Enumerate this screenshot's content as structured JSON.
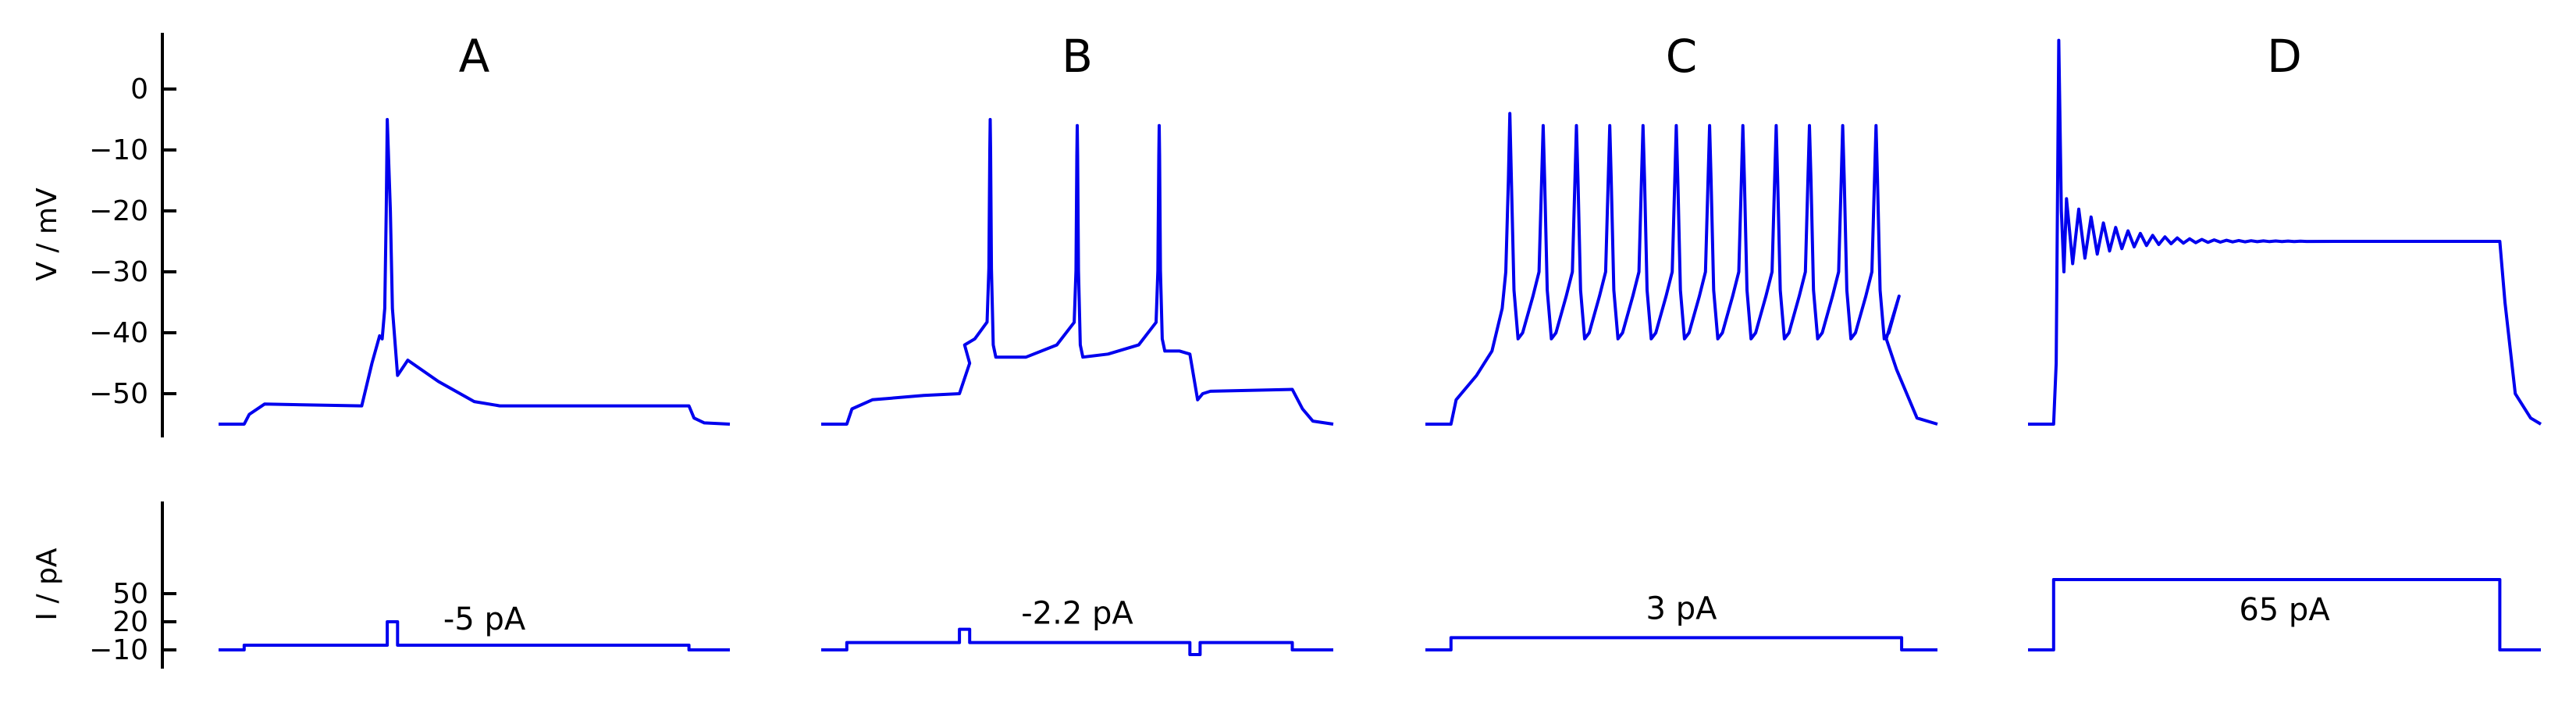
{
  "chart_data": {
    "type": "line",
    "trace_color": "#0000ee",
    "voltage_axis": {
      "label": "V / mV",
      "ticks": [
        0,
        -10,
        -20,
        -30,
        -40,
        -50
      ],
      "tick_labels": [
        "0",
        "−10",
        "−20",
        "−30",
        "−40",
        "−50"
      ],
      "ylim": [
        -56,
        9
      ]
    },
    "current_axis": {
      "label": "I / pA",
      "ticks": [
        50,
        20,
        -10
      ],
      "tick_labels": [
        "50",
        "20",
        "−10"
      ],
      "ylim": [
        -20,
        75
      ]
    },
    "panels": [
      {
        "title": "A",
        "current_label": "-5 pA",
        "voltage": {
          "baseline": -55,
          "plateau_start": 0.05,
          "plateau_end": 0.92,
          "plateau": -52,
          "events": [
            {
              "kind": "spike",
              "t": 0.33,
              "pre": -40.5,
              "peak": -5,
              "after": -45,
              "decay_to": -52,
              "decay_end": 0.55
            }
          ]
        },
        "current": {
          "baseline": -10,
          "steps": [
            [
              0.05,
              -5
            ],
            [
              0.33,
              20
            ],
            [
              0.35,
              -5
            ],
            [
              0.92,
              -10
            ]
          ]
        }
      },
      {
        "title": "B",
        "current_label": "-2.2 pA",
        "voltage": {
          "baseline": -55,
          "plateau_start": 0.05,
          "plateau_end": 0.92,
          "events": [
            {
              "kind": "depolarize",
              "t0": 0.05,
              "t1": 0.28,
              "from": -55,
              "to": -50
            },
            {
              "kind": "spike",
              "t": 0.33,
              "pre": -42,
              "peak": -5,
              "trough": -44
            },
            {
              "kind": "spike",
              "t": 0.5,
              "pre": -44,
              "peak": -6,
              "trough": -44
            },
            {
              "kind": "spike",
              "t": 0.66,
              "pre": -44,
              "peak": -6,
              "trough": -43
            },
            {
              "kind": "dip",
              "t": 0.74,
              "to": -51
            },
            {
              "kind": "rest",
              "t0": 0.76,
              "t1": 0.92,
              "level": -49.5
            }
          ]
        },
        "current": {
          "baseline": -10,
          "steps": [
            [
              0.05,
              -2.2
            ],
            [
              0.27,
              12
            ],
            [
              0.29,
              -2.2
            ],
            [
              0.72,
              -15
            ],
            [
              0.74,
              -2.2
            ],
            [
              0.92,
              -10
            ]
          ]
        }
      },
      {
        "title": "C",
        "current_label": "3 pA",
        "voltage": {
          "baseline": -55,
          "plateau_start": 0.05,
          "plateau_end": 0.93,
          "spike_times": [
            0.165,
            0.23,
            0.295,
            0.36,
            0.425,
            0.49,
            0.555,
            0.62,
            0.685,
            0.75,
            0.815,
            0.88
          ],
          "spike_peaks": [
            -4,
            -6,
            -6,
            -6,
            -6,
            -6,
            -6,
            -6,
            -6,
            -6,
            -6,
            -6
          ],
          "trough": -41
        },
        "current": {
          "baseline": -10,
          "steps": [
            [
              0.05,
              3
            ],
            [
              0.93,
              -10
            ]
          ]
        }
      },
      {
        "title": "D",
        "current_label": "65 pA",
        "voltage": {
          "baseline": -55,
          "plateau_start": 0.05,
          "plateau_end": 0.92,
          "peak": 8,
          "settle": -25,
          "ringing_first": -30
        },
        "current": {
          "baseline": -10,
          "steps": [
            [
              0.05,
              65
            ],
            [
              0.92,
              -10
            ]
          ]
        }
      }
    ]
  }
}
